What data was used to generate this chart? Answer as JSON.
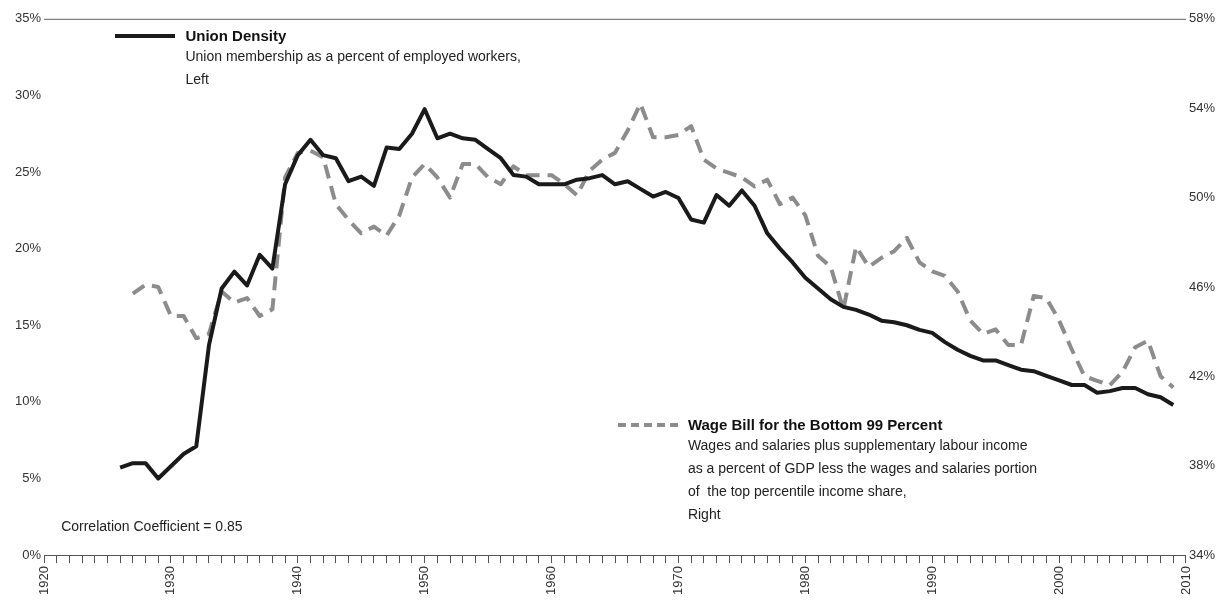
{
  "chart_data": {
    "type": "line",
    "xlim": [
      1920,
      2010
    ],
    "xticks": [
      1920,
      {
        "value": 1921,
        "label": null
      },
      {
        "value": 1922,
        "label": null
      },
      {
        "value": 1923,
        "label": null
      },
      {
        "value": 1924,
        "label": null
      },
      {
        "value": 1925,
        "label": null
      },
      {
        "value": 1926,
        "label": null
      },
      {
        "value": 1927,
        "label": null
      },
      {
        "value": 1928,
        "label": null
      },
      {
        "value": 1929,
        "label": null
      },
      1930,
      {
        "value": 1931,
        "label": null
      },
      {
        "value": 1932,
        "label": null
      },
      {
        "value": 1933,
        "label": null
      },
      {
        "value": 1934,
        "label": null
      },
      {
        "value": 1935,
        "label": null
      },
      {
        "value": 1936,
        "label": null
      },
      {
        "value": 1937,
        "label": null
      },
      {
        "value": 1938,
        "label": null
      },
      {
        "value": 1939,
        "label": null
      },
      1940,
      {
        "value": 1941,
        "label": null
      },
      {
        "value": 1942,
        "label": null
      },
      {
        "value": 1943,
        "label": null
      },
      {
        "value": 1944,
        "label": null
      },
      {
        "value": 1945,
        "label": null
      },
      {
        "value": 1946,
        "label": null
      },
      {
        "value": 1947,
        "label": null
      },
      {
        "value": 1948,
        "label": null
      },
      {
        "value": 1949,
        "label": null
      },
      1950,
      {
        "value": 1951,
        "label": null
      },
      {
        "value": 1952,
        "label": null
      },
      {
        "value": 1953,
        "label": null
      },
      {
        "value": 1954,
        "label": null
      },
      {
        "value": 1955,
        "label": null
      },
      {
        "value": 1956,
        "label": null
      },
      {
        "value": 1957,
        "label": null
      },
      {
        "value": 1958,
        "label": null
      },
      {
        "value": 1959,
        "label": null
      },
      1960,
      {
        "value": 1961,
        "label": null
      },
      {
        "value": 1962,
        "label": null
      },
      {
        "value": 1963,
        "label": null
      },
      {
        "value": 1964,
        "label": null
      },
      {
        "value": 1965,
        "label": null
      },
      {
        "value": 1966,
        "label": null
      },
      {
        "value": 1967,
        "label": null
      },
      {
        "value": 1968,
        "label": null
      },
      {
        "value": 1969,
        "label": null
      },
      1970,
      {
        "value": 1971,
        "label": null
      },
      {
        "value": 1972,
        "label": null
      },
      {
        "value": 1973,
        "label": null
      },
      {
        "value": 1974,
        "label": null
      },
      {
        "value": 1975,
        "label": null
      },
      {
        "value": 1976,
        "label": null
      },
      {
        "value": 1977,
        "label": null
      },
      {
        "value": 1978,
        "label": null
      },
      {
        "value": 1979,
        "label": null
      },
      1980,
      {
        "value": 1981,
        "label": null
      },
      {
        "value": 1982,
        "label": null
      },
      {
        "value": 1983,
        "label": null
      },
      {
        "value": 1984,
        "label": null
      },
      {
        "value": 1985,
        "label": null
      },
      {
        "value": 1986,
        "label": null
      },
      {
        "value": 1987,
        "label": null
      },
      {
        "value": 1988,
        "label": null
      },
      {
        "value": 1989,
        "label": null
      },
      1990,
      {
        "value": 1991,
        "label": null
      },
      {
        "value": 1992,
        "label": null
      },
      {
        "value": 1993,
        "label": null
      },
      {
        "value": 1994,
        "label": null
      },
      {
        "value": 1995,
        "label": null
      },
      {
        "value": 1996,
        "label": null
      },
      {
        "value": 1997,
        "label": null
      },
      {
        "value": 1998,
        "label": null
      },
      {
        "value": 1999,
        "label": null
      },
      2000,
      {
        "value": 2001,
        "label": null
      },
      {
        "value": 2002,
        "label": null
      },
      {
        "value": 2003,
        "label": null
      },
      {
        "value": 2004,
        "label": null
      },
      {
        "value": 2005,
        "label": null
      },
      {
        "value": 2006,
        "label": null
      },
      {
        "value": 2007,
        "label": null
      },
      {
        "value": 2008,
        "label": null
      },
      {
        "value": 2009,
        "label": null
      },
      2010
    ],
    "ylim": [
      0,
      35
    ],
    "yticks": [
      {
        "value": 0,
        "label": "0%"
      },
      {
        "value": 5,
        "label": "5%"
      },
      {
        "value": 10,
        "label": "10%"
      },
      {
        "value": 15,
        "label": "15%"
      },
      {
        "value": 20,
        "label": "20%"
      },
      {
        "value": 25,
        "label": "25%"
      },
      {
        "value": 30,
        "label": "30%"
      },
      {
        "value": 35,
        "label": "35%"
      }
    ],
    "y2lim": [
      34,
      58
    ],
    "y2ticks": [
      {
        "value": 34,
        "label": "34%"
      },
      {
        "value": 38,
        "label": "38%"
      },
      {
        "value": 42,
        "label": "42%"
      },
      {
        "value": 46,
        "label": "46%"
      },
      {
        "value": 50,
        "label": "50%"
      },
      {
        "value": 54,
        "label": "54%"
      },
      {
        "value": 58,
        "label": "58%"
      }
    ],
    "grid": false,
    "legend": "top left",
    "marker": "none",
    "annotations": [
      "Union membership as a percent of employed workers,\nLeft",
      "Wages and salaries plus supplementary labour income\nas a percent of GDP less the wages and salaries portion\nof  the top percentile income share,\nRight",
      "Correlation Coefficient = 0.85"
    ],
    "series": [
      {
        "name": "Union Density",
        "color": "#1a1a1a",
        "line_style": "solid",
        "x": [
          1926,
          1927,
          1928,
          1929,
          1930,
          1931,
          1932,
          1933,
          1934,
          1935,
          1936,
          1937,
          1938,
          1939,
          1940,
          1941,
          1942,
          1943,
          1944,
          1945,
          1946,
          1947,
          1948,
          1949,
          1950,
          1951,
          1952,
          1953,
          1954,
          1955,
          1956,
          1957,
          1958,
          1959,
          1960,
          1961,
          1962,
          1963,
          1964,
          1965,
          1966,
          1967,
          1968,
          1969,
          1970,
          1971,
          1972,
          1973,
          1974,
          1975,
          1976,
          1977,
          1978,
          1979,
          1980,
          1981,
          1982,
          1983,
          1984,
          1985,
          1986,
          1987,
          1988,
          1989,
          1990,
          1991,
          1992,
          1993,
          1994,
          1995,
          1996,
          1997,
          1998,
          1999,
          2000,
          2001,
          2002,
          2003,
          2004,
          2005,
          2006,
          2007,
          2008,
          2009
        ],
        "values": [
          5.7,
          6.0,
          6.0,
          5.0,
          5.8,
          6.6,
          7.1,
          13.7,
          17.4,
          18.5,
          17.6,
          19.6,
          18.7,
          24.2,
          26.1,
          27.1,
          26.1,
          25.9,
          24.4,
          24.7,
          24.1,
          26.6,
          26.5,
          27.5,
          29.1,
          27.2,
          27.5,
          27.2,
          27.1,
          26.5,
          25.9,
          24.8,
          24.7,
          24.2,
          24.2,
          24.2,
          24.5,
          24.6,
          24.8,
          24.2,
          24.4,
          23.9,
          23.4,
          23.7,
          23.3,
          21.9,
          21.7,
          23.5,
          22.8,
          23.8,
          22.8,
          21.0,
          20.0,
          19.1,
          18.1,
          17.4,
          16.7,
          16.2,
          16.0,
          15.7,
          15.3,
          15.2,
          15.0,
          14.7,
          14.5,
          13.9,
          13.4,
          13.0,
          12.7,
          12.7,
          12.4,
          12.1,
          12.0,
          11.7,
          11.4,
          11.1,
          11.1,
          10.6,
          10.7,
          10.9,
          10.9,
          10.5,
          10.3,
          9.8
        ]
      },
      {
        "name": "Wage Bill for the Bottom 99 Percent",
        "color": "#8c8c8c",
        "line_style": "dashed",
        "axis": "y2",
        "x": [
          1927,
          1928,
          1929,
          1930,
          1931,
          1932,
          1933,
          1934,
          1935,
          1936,
          1937,
          1938,
          1939,
          1940,
          1941,
          1942,
          1943,
          1944,
          1945,
          1946,
          1947,
          1948,
          1949,
          1950,
          1951,
          1952,
          1953,
          1954,
          1955,
          1956,
          1957,
          1958,
          1959,
          1960,
          1961,
          1962,
          1963,
          1964,
          1965,
          1966,
          1967,
          1968,
          1969,
          1970,
          1971,
          1972,
          1973,
          1974,
          1975,
          1976,
          1977,
          1978,
          1979,
          1980,
          1981,
          1982,
          1983,
          1984,
          1985,
          1986,
          1987,
          1988,
          1989,
          1990,
          1991,
          1992,
          1993,
          1994,
          1995,
          1996,
          1997,
          1998,
          1999,
          2000,
          2001,
          2002,
          2003,
          2004,
          2005,
          2006,
          2007,
          2008,
          2009
        ],
        "values": [
          45.7,
          46.1,
          46.0,
          44.7,
          44.7,
          43.7,
          43.9,
          45.8,
          45.3,
          45.5,
          44.7,
          45.0,
          50.9,
          52.0,
          52.1,
          51.8,
          49.7,
          49.0,
          48.4,
          48.7,
          48.3,
          49.2,
          50.9,
          51.5,
          50.9,
          50.0,
          51.5,
          51.5,
          50.9,
          50.6,
          51.4,
          51.0,
          51.0,
          51.0,
          50.6,
          50.1,
          51.2,
          51.7,
          52.0,
          53.0,
          54.2,
          52.7,
          52.7,
          52.8,
          53.2,
          51.7,
          51.3,
          51.1,
          50.9,
          50.5,
          50.8,
          49.7,
          50.0,
          49.2,
          47.4,
          46.9,
          45.0,
          47.8,
          46.9,
          47.3,
          47.6,
          48.2,
          47.1,
          46.7,
          46.5,
          45.8,
          44.5,
          43.9,
          44.1,
          43.4,
          43.4,
          45.6,
          45.5,
          44.5,
          43.2,
          42.0,
          41.8,
          41.6,
          42.2,
          43.3,
          43.6,
          42.0,
          41.5
        ]
      }
    ]
  }
}
